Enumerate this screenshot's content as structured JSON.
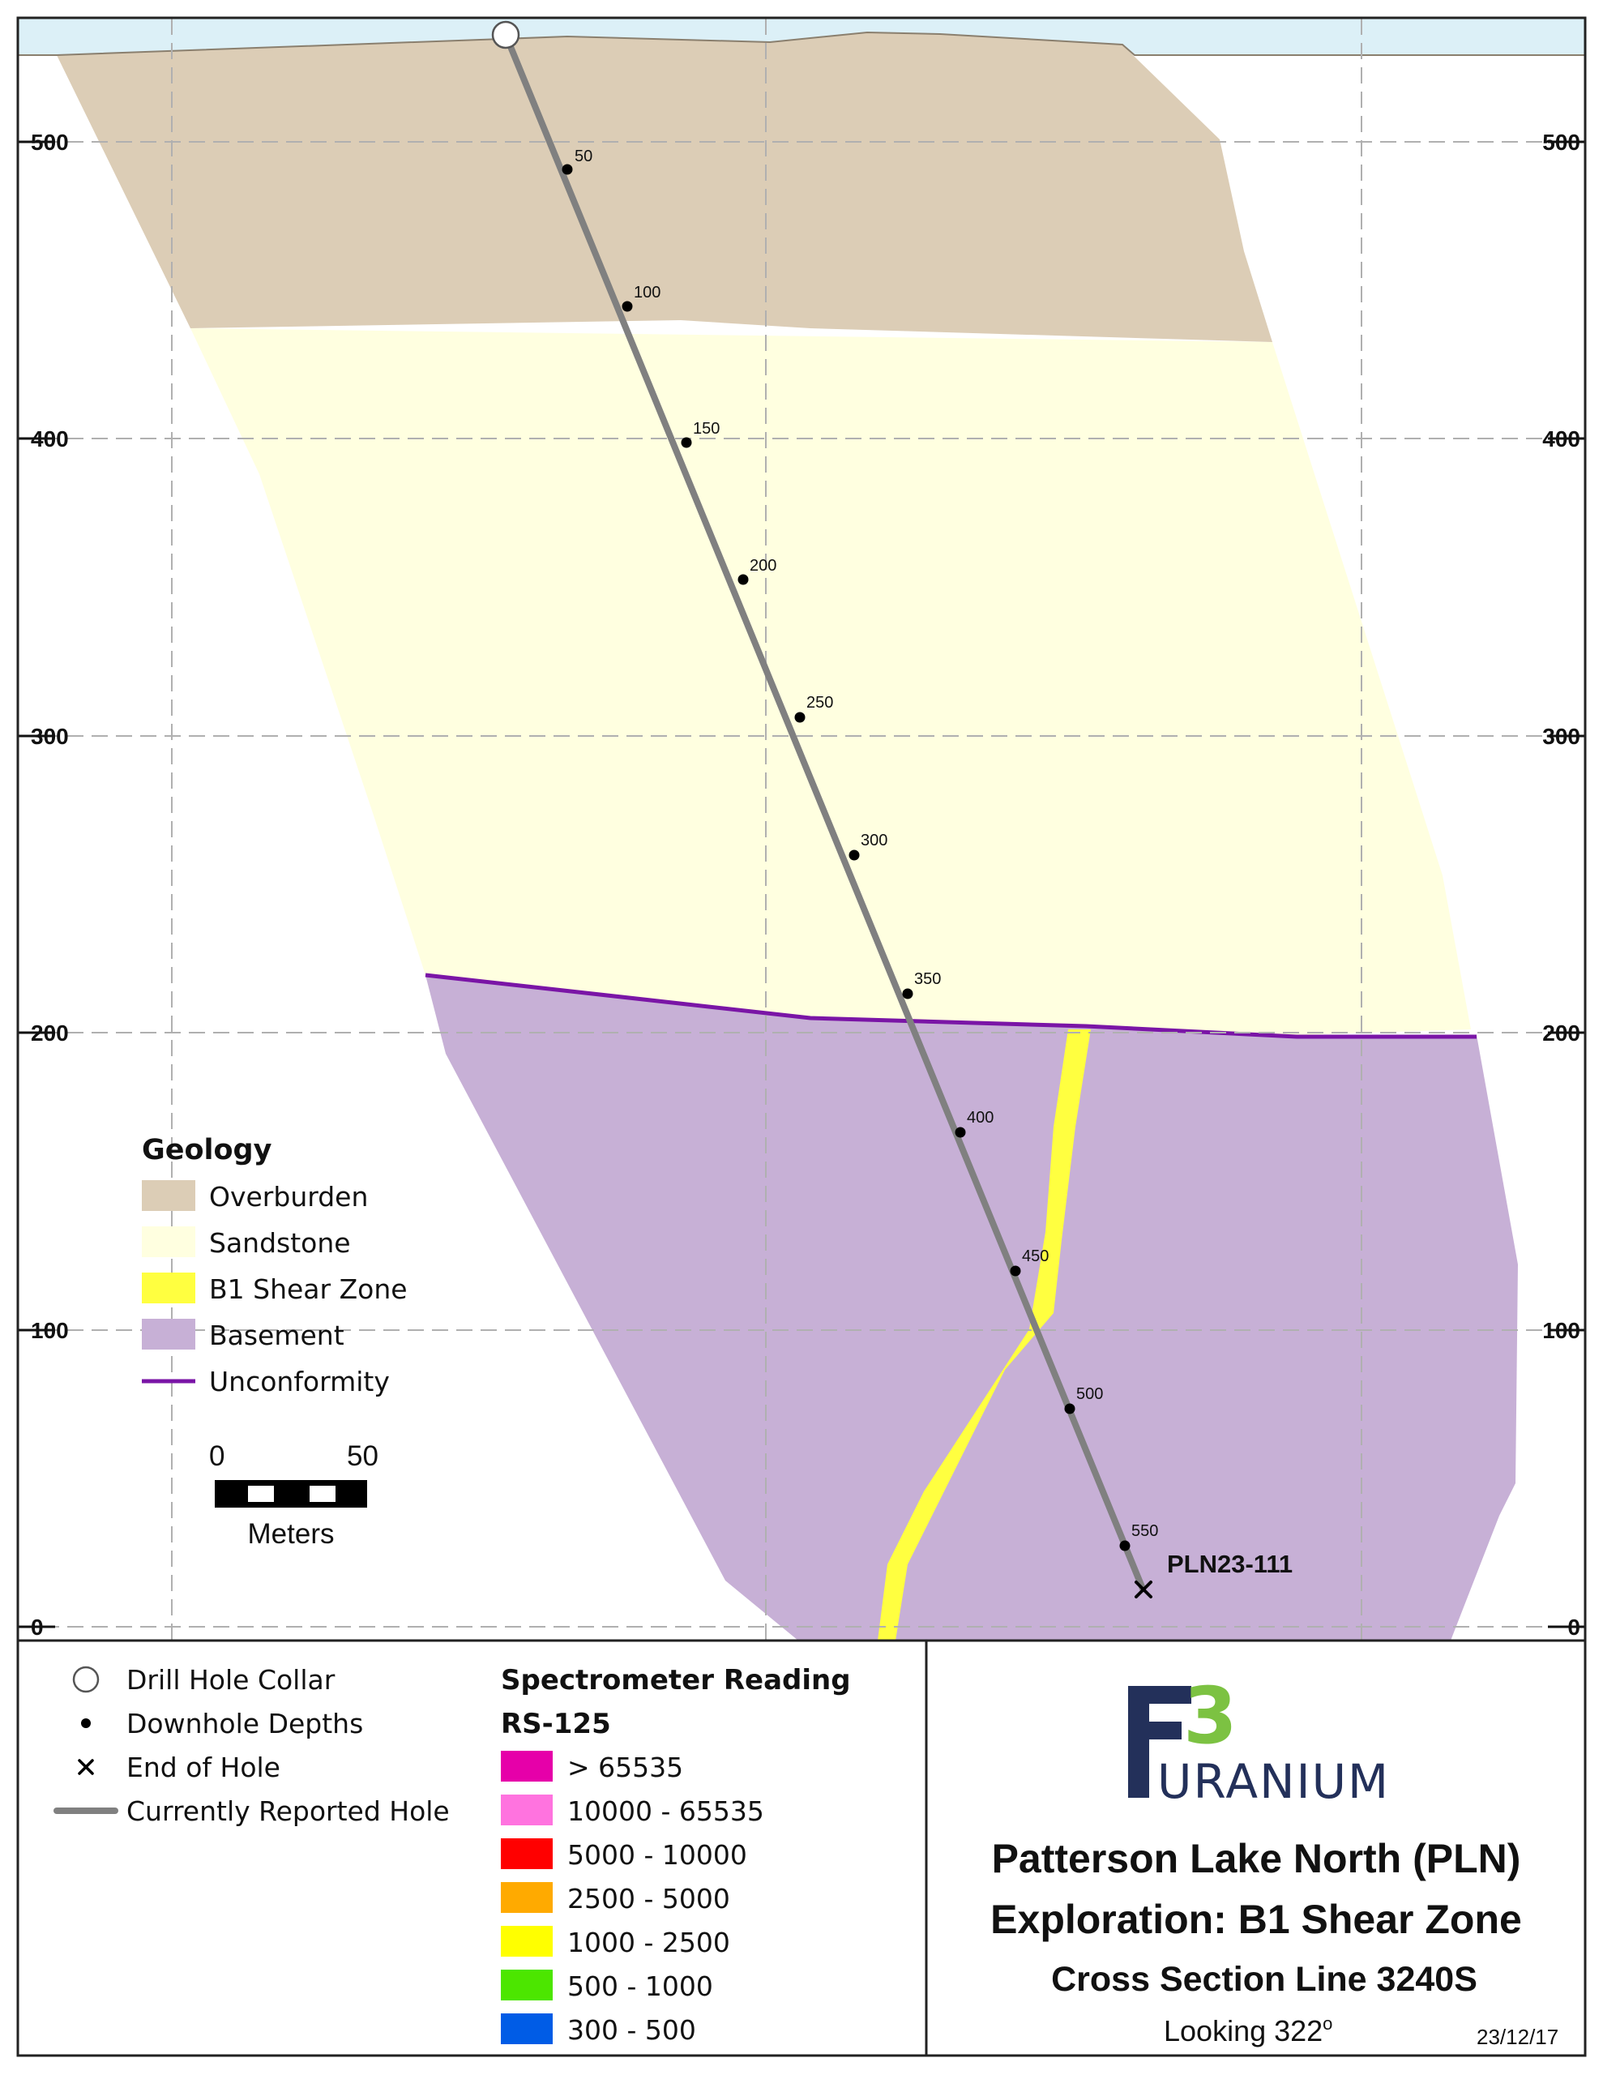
{
  "elevation_axis": {
    "ticks_left": [
      "500",
      "400",
      "300",
      "200",
      "100",
      "0"
    ],
    "ticks_right": [
      "500",
      "400",
      "300",
      "200",
      "100",
      "0"
    ]
  },
  "geology_legend": {
    "title": "Geology",
    "items": [
      {
        "label": "Overburden",
        "color": "#dccdb6"
      },
      {
        "label": "Sandstone",
        "color": "#ffffe0"
      },
      {
        "label": "B1 Shear Zone",
        "color": "#ffff40"
      },
      {
        "label": "Basement",
        "color": "#c7b0d6"
      },
      {
        "label": "Unconformity",
        "color": "#7a15a6"
      }
    ]
  },
  "drill_hole": {
    "name": "PLN23-111",
    "depth_labels": [
      "50",
      "100",
      "150",
      "200",
      "250",
      "300",
      "350",
      "400",
      "450",
      "500",
      "550"
    ]
  },
  "scale_bar": {
    "start": "0",
    "end": "50",
    "unit": "Meters"
  },
  "symbol_legend": {
    "items": [
      {
        "label": "Drill Hole Collar",
        "icon": "circle-icon"
      },
      {
        "label": "Downhole Depths",
        "icon": "dot-icon"
      },
      {
        "label": "End of Hole",
        "icon": "x-icon"
      },
      {
        "label": "Currently Reported Hole",
        "icon": "line-icon"
      }
    ]
  },
  "spectrometer_legend": {
    "title": "Spectrometer Reading",
    "subtitle": "RS-125",
    "items": [
      {
        "label": "> 65535",
        "color": "#e600a9"
      },
      {
        "label": "10000 - 65535",
        "color": "#ff73df"
      },
      {
        "label": "5000 - 10000",
        "color": "#ff0000"
      },
      {
        "label": "2500 - 5000",
        "color": "#ffaa00"
      },
      {
        "label": "1000 - 2500",
        "color": "#ffff00"
      },
      {
        "label": "500 - 1000",
        "color": "#4ce600"
      },
      {
        "label": "300 - 500",
        "color": "#005ce6"
      }
    ]
  },
  "title_block": {
    "logo_number": "3",
    "logo_letter": "F",
    "logo_word": "URANIUM",
    "line1": "Patterson Lake North (PLN)",
    "line2": "Exploration: B1 Shear Zone",
    "line3": "Cross Section Line 3240S",
    "looking": "Looking 322",
    "looking_sup": "o",
    "date": "23/12/17"
  }
}
